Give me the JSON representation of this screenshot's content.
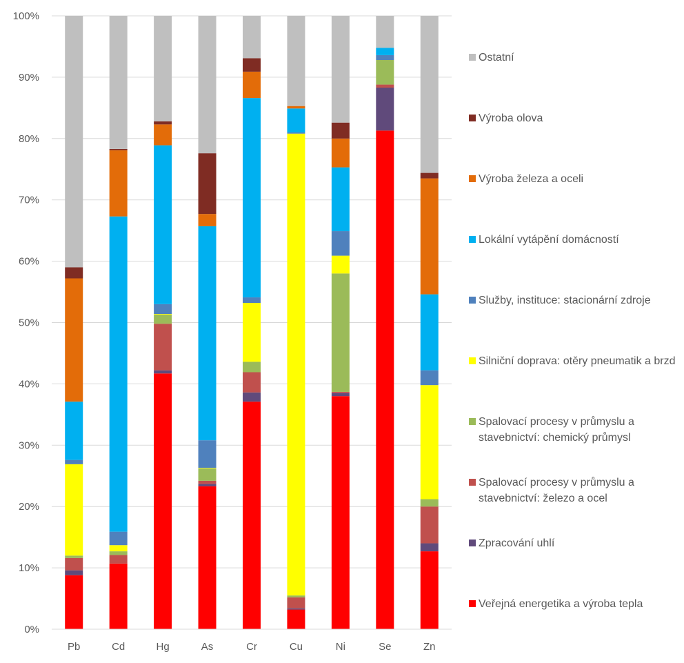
{
  "chart_data": {
    "type": "stacked-bar-100",
    "title": "",
    "xlabel": "",
    "ylabel": "",
    "ylim": [
      0,
      100
    ],
    "y_ticks": [
      "0%",
      "10%",
      "20%",
      "30%",
      "40%",
      "50%",
      "60%",
      "70%",
      "80%",
      "90%",
      "100%"
    ],
    "gridlines": true,
    "legend_position": "right",
    "categories": [
      "Pb",
      "Cd",
      "Hg",
      "As",
      "Cr",
      "Cu",
      "Ni",
      "Se",
      "Zn"
    ],
    "series": [
      {
        "name": "Veřejná energetika a výroba tepla",
        "color": "#FF0000",
        "values": [
          8.8,
          10.7,
          41.7,
          23.3,
          37.1,
          3.2,
          38.0,
          81.3,
          12.7
        ]
      },
      {
        "name": "Zpracování uhlí",
        "color": "#604A7B",
        "values": [
          0.8,
          0.0,
          0.5,
          0.4,
          1.5,
          0.2,
          0.5,
          7.0,
          1.3
        ]
      },
      {
        "name": "Spalovací procesy v průmyslu a stavebnictví: železo a ocel",
        "color": "#C0504D",
        "values": [
          2.0,
          1.4,
          7.6,
          0.5,
          3.3,
          1.8,
          0.2,
          0.5,
          6.0
        ]
      },
      {
        "name": "Spalovací procesy v průmyslu a stavebnictví: chemický průmysl",
        "color": "#9BBB59",
        "values": [
          0.4,
          0.6,
          1.5,
          2.0,
          1.7,
          0.3,
          19.3,
          4.0,
          1.2
        ]
      },
      {
        "name": "Silniční doprava: otěry pneumatik a brzd",
        "color": "#FFFF00",
        "values": [
          14.9,
          1.0,
          0.1,
          0.1,
          9.6,
          75.3,
          2.9,
          0.0,
          18.6
        ]
      },
      {
        "name": "Služby, instituce: stacionární zdroje",
        "color": "#4F81BD",
        "values": [
          0.7,
          2.2,
          1.6,
          4.5,
          0.9,
          0.2,
          4.0,
          0.8,
          2.4
        ]
      },
      {
        "name": "Lokální vytápění domácností",
        "color": "#00B0F0",
        "values": [
          9.5,
          51.4,
          25.9,
          34.9,
          32.5,
          3.9,
          10.4,
          1.2,
          12.4
        ]
      },
      {
        "name": "Výroba železa a oceli",
        "color": "#E36C09",
        "values": [
          20.1,
          10.8,
          3.4,
          2.0,
          4.3,
          0.4,
          4.7,
          0.0,
          18.9
        ]
      },
      {
        "name": "Výroba olova",
        "color": "#7F2C23",
        "values": [
          1.8,
          0.2,
          0.5,
          9.9,
          2.2,
          0.0,
          2.6,
          0.0,
          0.9
        ]
      },
      {
        "name": "Ostatní",
        "color": "#BFBFBF",
        "values": [
          41.0,
          21.7,
          17.2,
          22.4,
          6.9,
          14.7,
          17.4,
          5.2,
          25.6
        ]
      }
    ]
  },
  "legend": {
    "items": [
      {
        "label": "Ostatní",
        "color": "#BFBFBF"
      },
      {
        "label": "Výroba olova",
        "color": "#7F2C23"
      },
      {
        "label": "Výroba železa a oceli",
        "color": "#E36C09"
      },
      {
        "label": "Lokální vytápění domácností",
        "color": "#00B0F0"
      },
      {
        "label": "Služby, instituce: stacionární zdroje",
        "color": "#4F81BD"
      },
      {
        "label": "Silniční doprava: otěry pneumatik a brzd",
        "color": "#FFFF00"
      },
      {
        "label": "Spalovací procesy v průmyslu a stavebnictví: chemický průmysl",
        "color": "#9BBB59"
      },
      {
        "label": "Spalovací procesy v průmyslu a stavebnictví: železo a ocel",
        "color": "#C0504D"
      },
      {
        "label": "Zpracování uhlí",
        "color": "#604A7B"
      },
      {
        "label": "Veřejná energetika a výroba tepla",
        "color": "#FF0000"
      }
    ]
  }
}
